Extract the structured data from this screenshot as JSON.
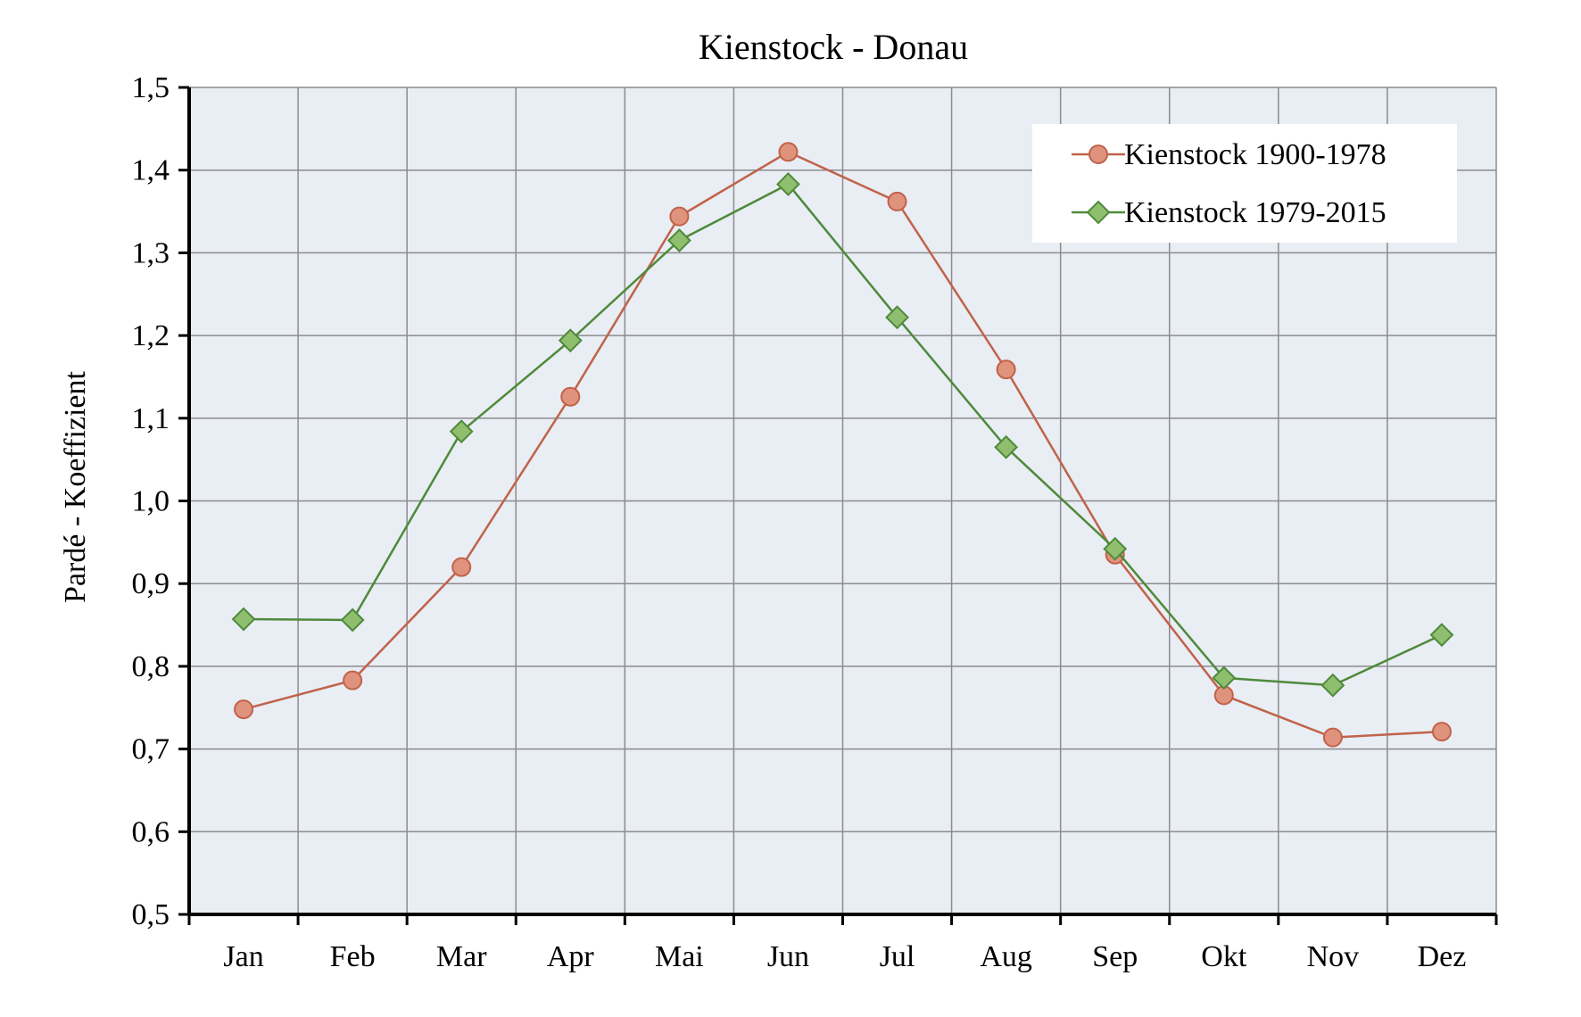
{
  "chart_data": {
    "type": "line",
    "title": "Kienstock  - Donau",
    "xlabel": "",
    "ylabel": "Pardé - Koeffizient",
    "categories": [
      "Jan",
      "Feb",
      "Mar",
      "Apr",
      "Mai",
      "Jun",
      "Jul",
      "Aug",
      "Sep",
      "Okt",
      "Nov",
      "Dez"
    ],
    "ylim": [
      0.5,
      1.5
    ],
    "yticks": [
      0.5,
      0.6,
      0.7,
      0.8,
      0.9,
      1.0,
      1.1,
      1.2,
      1.3,
      1.4,
      1.5
    ],
    "ytick_labels": [
      "0,5",
      "0,6",
      "0,7",
      "0,8",
      "0,9",
      "1,0",
      "1,1",
      "1,2",
      "1,3",
      "1,4",
      "1,5"
    ],
    "grid": true,
    "legend_position": "top-right",
    "plot_background": "#e9edf4",
    "series": [
      {
        "name": "Kienstock 1900-1978",
        "color": "#c0634a",
        "marker_fill": "#e0937c",
        "marker": "circle",
        "values": [
          0.748,
          0.783,
          0.92,
          1.126,
          1.344,
          1.422,
          1.362,
          1.159,
          0.935,
          0.765,
          0.714,
          0.721
        ]
      },
      {
        "name": "Kienstock 1979-2015",
        "color": "#4e8a3a",
        "marker_fill": "#8fbf6e",
        "marker": "diamond",
        "values": [
          0.857,
          0.856,
          1.084,
          1.194,
          1.315,
          1.383,
          1.222,
          1.065,
          0.942,
          0.786,
          0.777,
          0.838
        ]
      }
    ]
  }
}
